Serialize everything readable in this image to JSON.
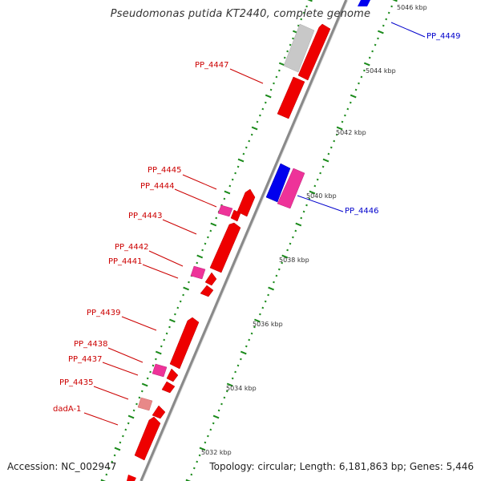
{
  "title": "Pseudomonas putida KT2440, complete genome",
  "footer": {
    "accession": "Accession: NC_002947",
    "topology": "Topology: circular; Length: 6,181,863 bp; Genes: 5,446"
  },
  "colors": {
    "backbone": "#8a8a8a",
    "gene_forward": "#ee0000",
    "gene_reverse": "#0000ee",
    "gene_pink": "#ee3399",
    "gene_pale": "#e88888",
    "gene_grey": "#c8c8c8",
    "tick": "#1a8a1a",
    "label_red": "#cc0000",
    "label_blue": "#0000cc"
  },
  "scale_ticks": [
    "5046 kbp",
    "5044 kbp",
    "5042 kbp",
    "5040 kbp",
    "5038 kbp",
    "5036 kbp",
    "5034 kbp",
    "5032 kbp"
  ],
  "gene_labels": [
    {
      "text": "PP_4449",
      "color": "blue"
    },
    {
      "text": "PP_4447",
      "color": "red"
    },
    {
      "text": "PP_4446",
      "color": "blue"
    },
    {
      "text": "PP_4445",
      "color": "red"
    },
    {
      "text": "PP_4444",
      "color": "red"
    },
    {
      "text": "PP_4443",
      "color": "red"
    },
    {
      "text": "PP_4442",
      "color": "red"
    },
    {
      "text": "PP_4441",
      "color": "red"
    },
    {
      "text": "PP_4439",
      "color": "red"
    },
    {
      "text": "PP_4438",
      "color": "red"
    },
    {
      "text": "PP_4437",
      "color": "red"
    },
    {
      "text": "PP_4435",
      "color": "red"
    },
    {
      "text": "dadA-1",
      "color": "red"
    }
  ]
}
